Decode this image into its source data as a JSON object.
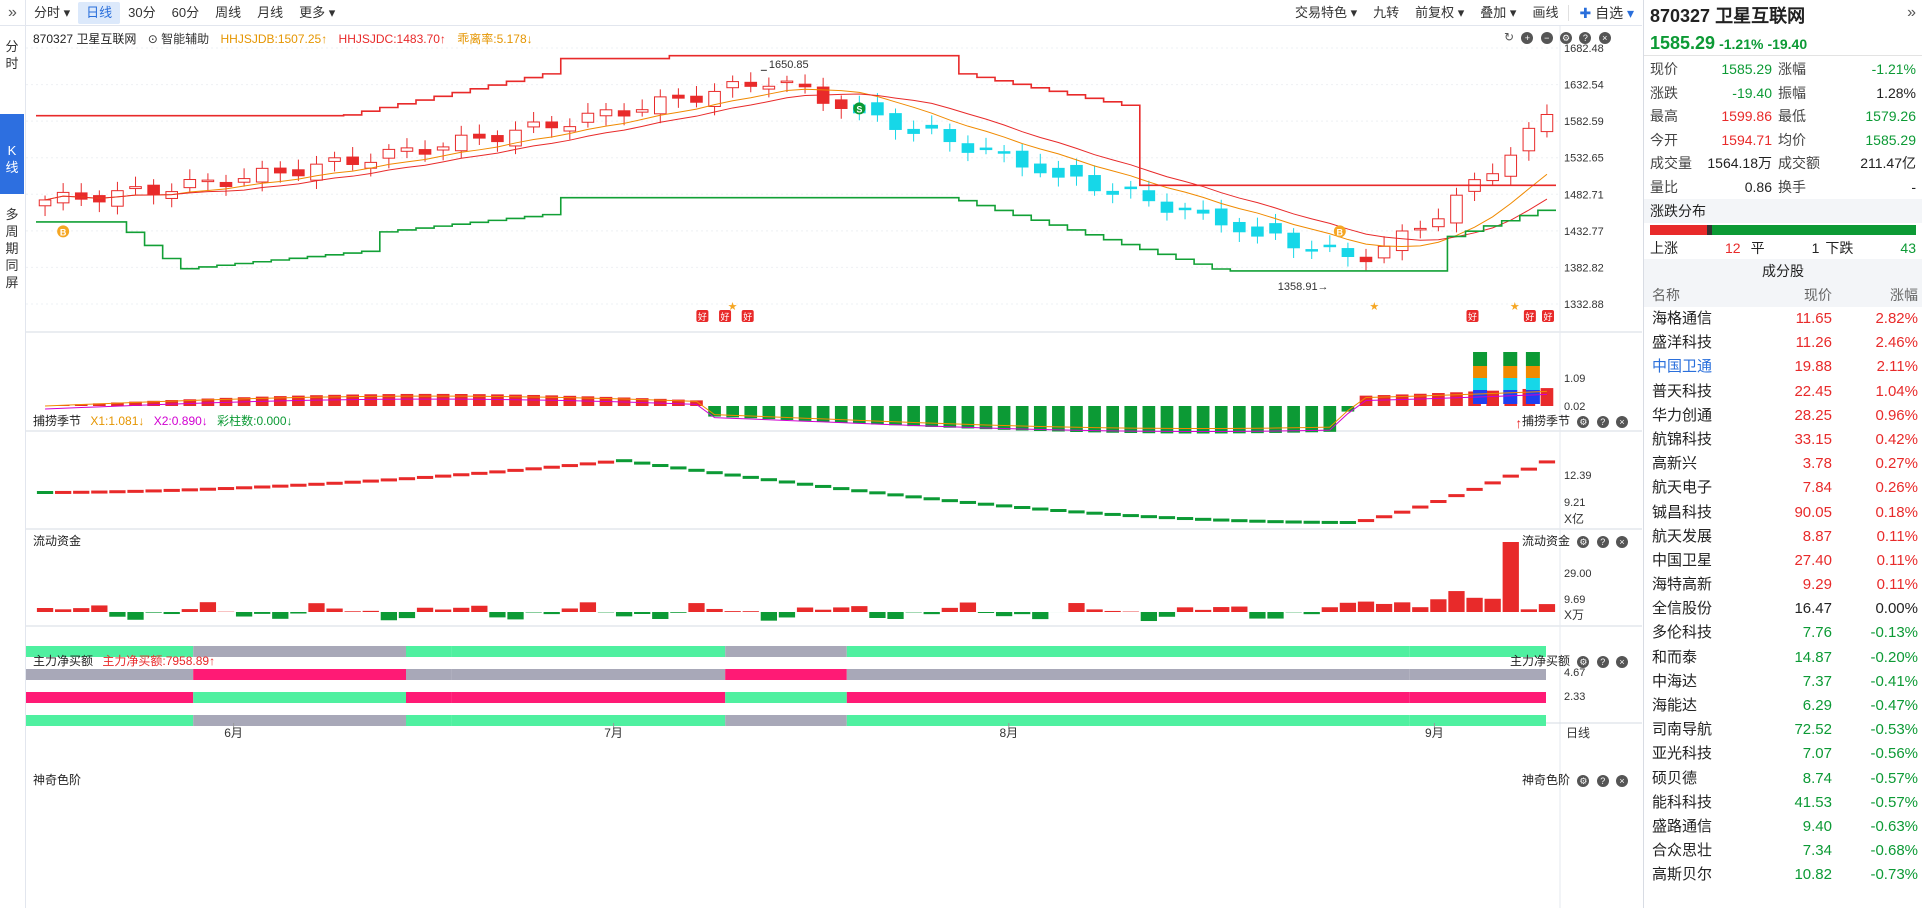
{
  "toolbar": {
    "collapse_icon": "»",
    "left": [
      "分时",
      "日线",
      "30分",
      "60分",
      "周线",
      "月线",
      "更多"
    ],
    "active": "日线",
    "right": [
      "交易特色",
      "九转",
      "前复权",
      "叠加",
      "画线",
      "自选"
    ]
  },
  "vtabs": {
    "fenshi": "分时",
    "kline": "K线",
    "multi": "多周期同屏"
  },
  "kline_header": {
    "stock": "870327 卫星互联网",
    "assist": "智能辅助",
    "line1": "HHJSJDB:1507.25↑",
    "line2": "HHJSJDC:1483.70↑",
    "line3": "乖离率:5.178↓"
  },
  "axis_labels": {
    "price": [
      "1682.48",
      "1632.54",
      "1582.59",
      "1532.65",
      "1482.71",
      "1432.77",
      "1382.82",
      "1332.88"
    ],
    "catch": [
      "1.09",
      "0.02"
    ],
    "flow": [
      "12.39",
      "9.21",
      "X亿"
    ],
    "net": [
      "29.00",
      "9.69",
      "X万"
    ],
    "magic": [
      "4.67",
      "2.33"
    ],
    "months": [
      "6月",
      "7月",
      "8月",
      "9月"
    ],
    "period": "日线"
  },
  "annotations": {
    "high": "1650.85",
    "low": "1358.91",
    "good": "好",
    "buy": "B",
    "sell": "S"
  },
  "panels": {
    "catch": {
      "name": "捕捞季节",
      "x1": "X1:1.081↓",
      "x2": "X2:0.890↓",
      "bars": "彩柱数:0.000↓"
    },
    "flow": {
      "name": "流动资金"
    },
    "net": {
      "name": "主力净买额",
      "value": "主力净买额:7958.89↑"
    },
    "magic": {
      "name": "神奇色阶"
    }
  },
  "quote": {
    "title": "870327 卫星互联网",
    "price": "1585.29",
    "chg_pct": "-1.21%",
    "chg": "-19.40",
    "rows": [
      [
        "现价",
        "1585.29",
        "涨幅",
        "-1.21%"
      ],
      [
        "涨跌",
        "-19.40",
        "振幅",
        "1.28%"
      ],
      [
        "最高",
        "1599.86",
        "最低",
        "1579.26"
      ],
      [
        "今开",
        "1594.71",
        "均价",
        "1585.29"
      ],
      [
        "成交量",
        "1564.18万",
        "成交额",
        "211.47亿"
      ],
      [
        "量比",
        "0.86",
        "换手",
        "-"
      ]
    ],
    "dist_title": "涨跌分布",
    "up_label": "上涨",
    "up": "12",
    "flat_label": "平",
    "flat": "1",
    "down_label": "下跌",
    "down": "43"
  },
  "constituents": {
    "title": "成分股",
    "headers": [
      "名称",
      "现价",
      "涨幅"
    ],
    "rows": [
      [
        "海格通信",
        "11.65",
        "2.82%"
      ],
      [
        "盛洋科技",
        "11.26",
        "2.46%"
      ],
      [
        "中国卫通",
        "19.88",
        "2.11%"
      ],
      [
        "普天科技",
        "22.45",
        "1.04%"
      ],
      [
        "华力创通",
        "28.25",
        "0.96%"
      ],
      [
        "航锦科技",
        "33.15",
        "0.42%"
      ],
      [
        "高新兴",
        "3.78",
        "0.27%"
      ],
      [
        "航天电子",
        "7.84",
        "0.26%"
      ],
      [
        "铖昌科技",
        "90.05",
        "0.18%"
      ],
      [
        "航天发展",
        "8.87",
        "0.11%"
      ],
      [
        "中国卫星",
        "27.40",
        "0.11%"
      ],
      [
        "海特高新",
        "9.29",
        "0.11%"
      ],
      [
        "全信股份",
        "16.47",
        "0.00%"
      ],
      [
        "多伦科技",
        "7.76",
        "-0.13%"
      ],
      [
        "和而泰",
        "14.87",
        "-0.20%"
      ],
      [
        "中海达",
        "7.37",
        "-0.41%"
      ],
      [
        "海能达",
        "6.29",
        "-0.47%"
      ],
      [
        "司南导航",
        "72.52",
        "-0.53%"
      ],
      [
        "亚光科技",
        "7.07",
        "-0.56%"
      ],
      [
        "硕贝德",
        "8.74",
        "-0.57%"
      ],
      [
        "能科科技",
        "41.53",
        "-0.57%"
      ],
      [
        "盛路通信",
        "9.40",
        "-0.63%"
      ],
      [
        "合众思壮",
        "7.34",
        "-0.68%"
      ],
      [
        "高斯贝尔",
        "10.82",
        "-0.73%"
      ]
    ]
  },
  "colors": {
    "up": "#e82a2a",
    "down": "#0c9a35",
    "flat": "#222222",
    "accent": "#2a6fdb"
  }
}
